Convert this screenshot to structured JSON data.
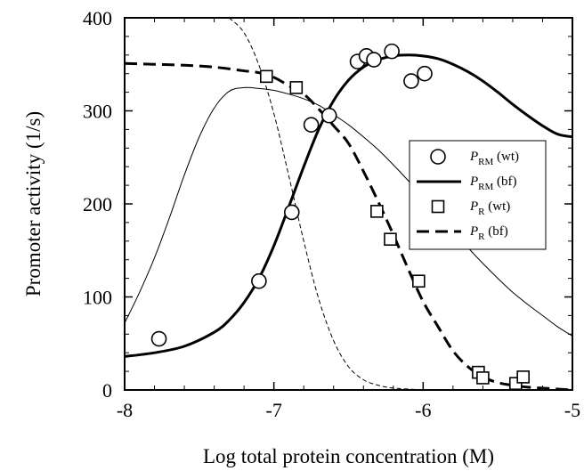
{
  "chart_data": {
    "type": "scatter",
    "xlabel": "Log total protein concentration  (M)",
    "ylabel": "Promoter activity (1/s)",
    "xlim": [
      -8,
      -5
    ],
    "ylim": [
      0,
      400
    ],
    "xticks": [
      -8,
      -7,
      -6,
      -5
    ],
    "xtick_labels": [
      "-8",
      "-7",
      "-6",
      "-5"
    ],
    "yticks": [
      0,
      100,
      200,
      300,
      400
    ],
    "ytick_labels": [
      "0",
      "100",
      "200",
      "300",
      "400"
    ],
    "grid": false,
    "legend_position": "right",
    "series": [
      {
        "name": "P_RM (wt)",
        "legend": {
          "main": "P",
          "sub": "RM",
          "suffix": "(wt)"
        },
        "kind": "points",
        "marker": "circle",
        "x": [
          -7.77,
          -7.1,
          -6.88,
          -6.75,
          -6.63,
          -6.44,
          -6.38,
          -6.33,
          -6.21,
          -6.08,
          -5.99
        ],
        "y": [
          55,
          117,
          191,
          285,
          295,
          353,
          359,
          355,
          364,
          332,
          340
        ]
      },
      {
        "name": "P_RM (bf)",
        "legend": {
          "main": "P",
          "sub": "RM",
          "suffix": "(bf)"
        },
        "kind": "line",
        "style": "solid",
        "weight": "thick",
        "x": [
          -8.0,
          -7.8,
          -7.6,
          -7.4,
          -7.3,
          -7.2,
          -7.1,
          -7.0,
          -6.9,
          -6.8,
          -6.7,
          -6.6,
          -6.5,
          -6.4,
          -6.3,
          -6.2,
          -6.1,
          -6.0,
          -5.9,
          -5.8,
          -5.7,
          -5.6,
          -5.5,
          -5.4,
          -5.3,
          -5.2,
          -5.1,
          -5.0
        ],
        "y": [
          36,
          40,
          47,
          62,
          75,
          94,
          120,
          155,
          197,
          240,
          280,
          311,
          333,
          347,
          355,
          359,
          360,
          359,
          356,
          350,
          342,
          332,
          320,
          307,
          295,
          284,
          275,
          272
        ]
      },
      {
        "name": "P_R (wt)",
        "legend": {
          "main": "P",
          "sub": "R",
          "suffix": "(wt)"
        },
        "kind": "points",
        "marker": "square",
        "x": [
          -7.05,
          -6.85,
          -6.31,
          -6.22,
          -6.03,
          -5.63,
          -5.6,
          -5.38,
          -5.33
        ],
        "y": [
          337,
          325,
          192,
          162,
          117,
          19,
          13,
          7,
          14
        ]
      },
      {
        "name": "P_R (bf)",
        "legend": {
          "main": "P",
          "sub": "R",
          "suffix": "(bf)"
        },
        "kind": "line",
        "style": "dashed",
        "weight": "thick",
        "x": [
          -8.0,
          -7.8,
          -7.6,
          -7.4,
          -7.2,
          -7.1,
          -7.0,
          -6.9,
          -6.8,
          -6.7,
          -6.6,
          -6.5,
          -6.4,
          -6.3,
          -6.2,
          -6.1,
          -6.0,
          -5.9,
          -5.8,
          -5.7,
          -5.6,
          -5.5,
          -5.4,
          -5.3,
          -5.2,
          -5.1,
          -5.0
        ],
        "y": [
          351,
          350,
          349,
          347,
          343,
          341,
          336,
          327,
          318,
          302,
          284,
          265,
          235,
          202,
          167,
          130,
          95,
          68,
          42,
          25,
          14,
          8,
          5,
          3,
          2,
          1,
          0
        ]
      },
      {
        "name": "",
        "kind": "line",
        "style": "solid",
        "weight": "thin",
        "x": [
          -8.0,
          -7.9,
          -7.8,
          -7.7,
          -7.6,
          -7.5,
          -7.4,
          -7.3,
          -7.2,
          -7.1,
          -7.0,
          -6.9,
          -6.8,
          -6.7,
          -6.6,
          -6.5,
          -6.4,
          -6.3,
          -6.2,
          -6.1,
          -6.0,
          -5.9,
          -5.8,
          -5.7,
          -5.6,
          -5.5,
          -5.4,
          -5.3,
          -5.2,
          -5.1,
          -5.0
        ],
        "y": [
          72,
          105,
          142,
          185,
          231,
          272,
          303,
          321,
          325,
          324,
          322,
          318,
          313,
          306,
          296,
          285,
          272,
          258,
          242,
          225,
          207,
          190,
          171,
          153,
          136,
          120,
          105,
          92,
          80,
          68,
          58
        ]
      },
      {
        "name": "",
        "kind": "line",
        "style": "dashed",
        "weight": "thin",
        "x": [
          -7.3,
          -7.2,
          -7.1,
          -7.0,
          -6.9,
          -6.8,
          -6.7,
          -6.6,
          -6.5,
          -6.4,
          -6.3,
          -6.2,
          -6.1,
          -6.0
        ],
        "y": [
          400,
          384,
          349,
          297,
          230,
          160,
          98,
          53,
          25,
          11,
          5,
          2,
          1,
          0
        ]
      }
    ]
  }
}
